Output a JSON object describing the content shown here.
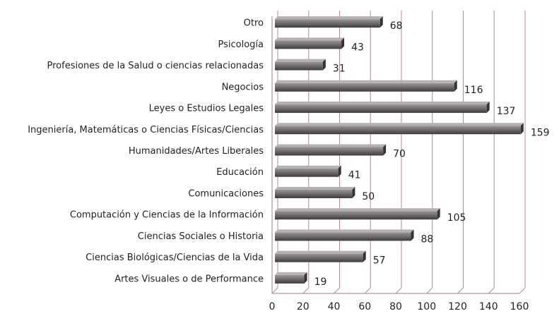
{
  "chart_data": {
    "type": "bar",
    "orientation": "horizontal",
    "categories": [
      "Otro",
      "Psicología",
      "Profesiones de la Salud o ciencias relacionadas",
      "Negocios",
      "Leyes o Estudios Legales",
      "Ingeniería, Matemáticas o Ciencias Físicas/Ciencias",
      "Humanidades/Artes Liberales",
      "Educación",
      "Comunicaciones",
      "Computación y Ciencias de la Información",
      "Ciencias Sociales o Historia",
      "Ciencias Biológicas/Ciencias de la Vida",
      "Artes Visuales o de Performance"
    ],
    "values": [
      68,
      43,
      31,
      116,
      137,
      159,
      70,
      41,
      50,
      105,
      88,
      57,
      19
    ],
    "color": "#6e6a6c",
    "xlim": [
      0,
      160
    ],
    "xticks": [
      0,
      20,
      40,
      60,
      80,
      100,
      120,
      140,
      160
    ],
    "grid": true
  }
}
